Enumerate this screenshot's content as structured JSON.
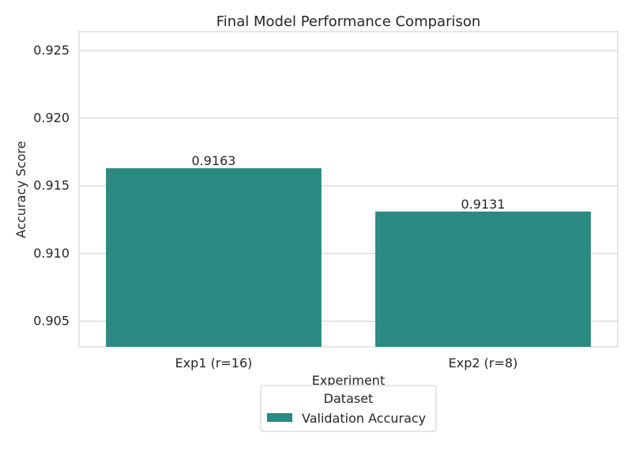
{
  "chart_data": {
    "type": "bar",
    "title": "Final Model Performance Comparison",
    "xlabel": "Experiment",
    "ylabel": "Accuracy Score",
    "categories": [
      "Exp1 (r=16)",
      "Exp2 (r=8)"
    ],
    "series": [
      {
        "name": "Validation Accuracy",
        "values": [
          0.9163,
          0.9131
        ],
        "color": "#2a8a82"
      }
    ],
    "data_labels": [
      "0.9163",
      "0.9131"
    ],
    "ylim": [
      0.9031,
      0.9264
    ],
    "yticks": [
      0.905,
      0.91,
      0.915,
      0.92,
      0.925
    ],
    "ytick_labels": [
      "0.905",
      "0.910",
      "0.915",
      "0.920",
      "0.925"
    ],
    "grid": true,
    "legend": {
      "title": "Dataset",
      "placement": "bottom-center"
    }
  }
}
